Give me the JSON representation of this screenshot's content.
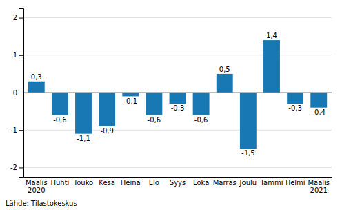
{
  "chart_data": {
    "type": "bar",
    "categories": [
      "Maalis\n2020",
      "Huhti",
      "Touko",
      "Kesä",
      "Heinä",
      "Elo",
      "Syys",
      "Loka",
      "Marras",
      "Joulu",
      "Tammi",
      "Helmi",
      "Maalis\n2021"
    ],
    "values": [
      0.3,
      -0.6,
      -1.1,
      -0.9,
      -0.1,
      -0.6,
      -0.3,
      -0.6,
      0.5,
      -1.5,
      1.4,
      -0.3,
      -0.4
    ],
    "value_labels": [
      "0,3",
      "-0,6",
      "-1,1",
      "-0,9",
      "-0,1",
      "-0,6",
      "-0,3",
      "-0,6",
      "0,5",
      "-1,5",
      "1,4",
      "-0,3",
      "-0,4"
    ],
    "data_labels": true,
    "color": "#1878b4",
    "ylim": [
      -2.25,
      2.25
    ],
    "yticks": [
      -2,
      -1,
      0,
      1,
      2
    ],
    "grid": true,
    "annotations": [
      "Lähde: Tilastokeskus"
    ]
  }
}
